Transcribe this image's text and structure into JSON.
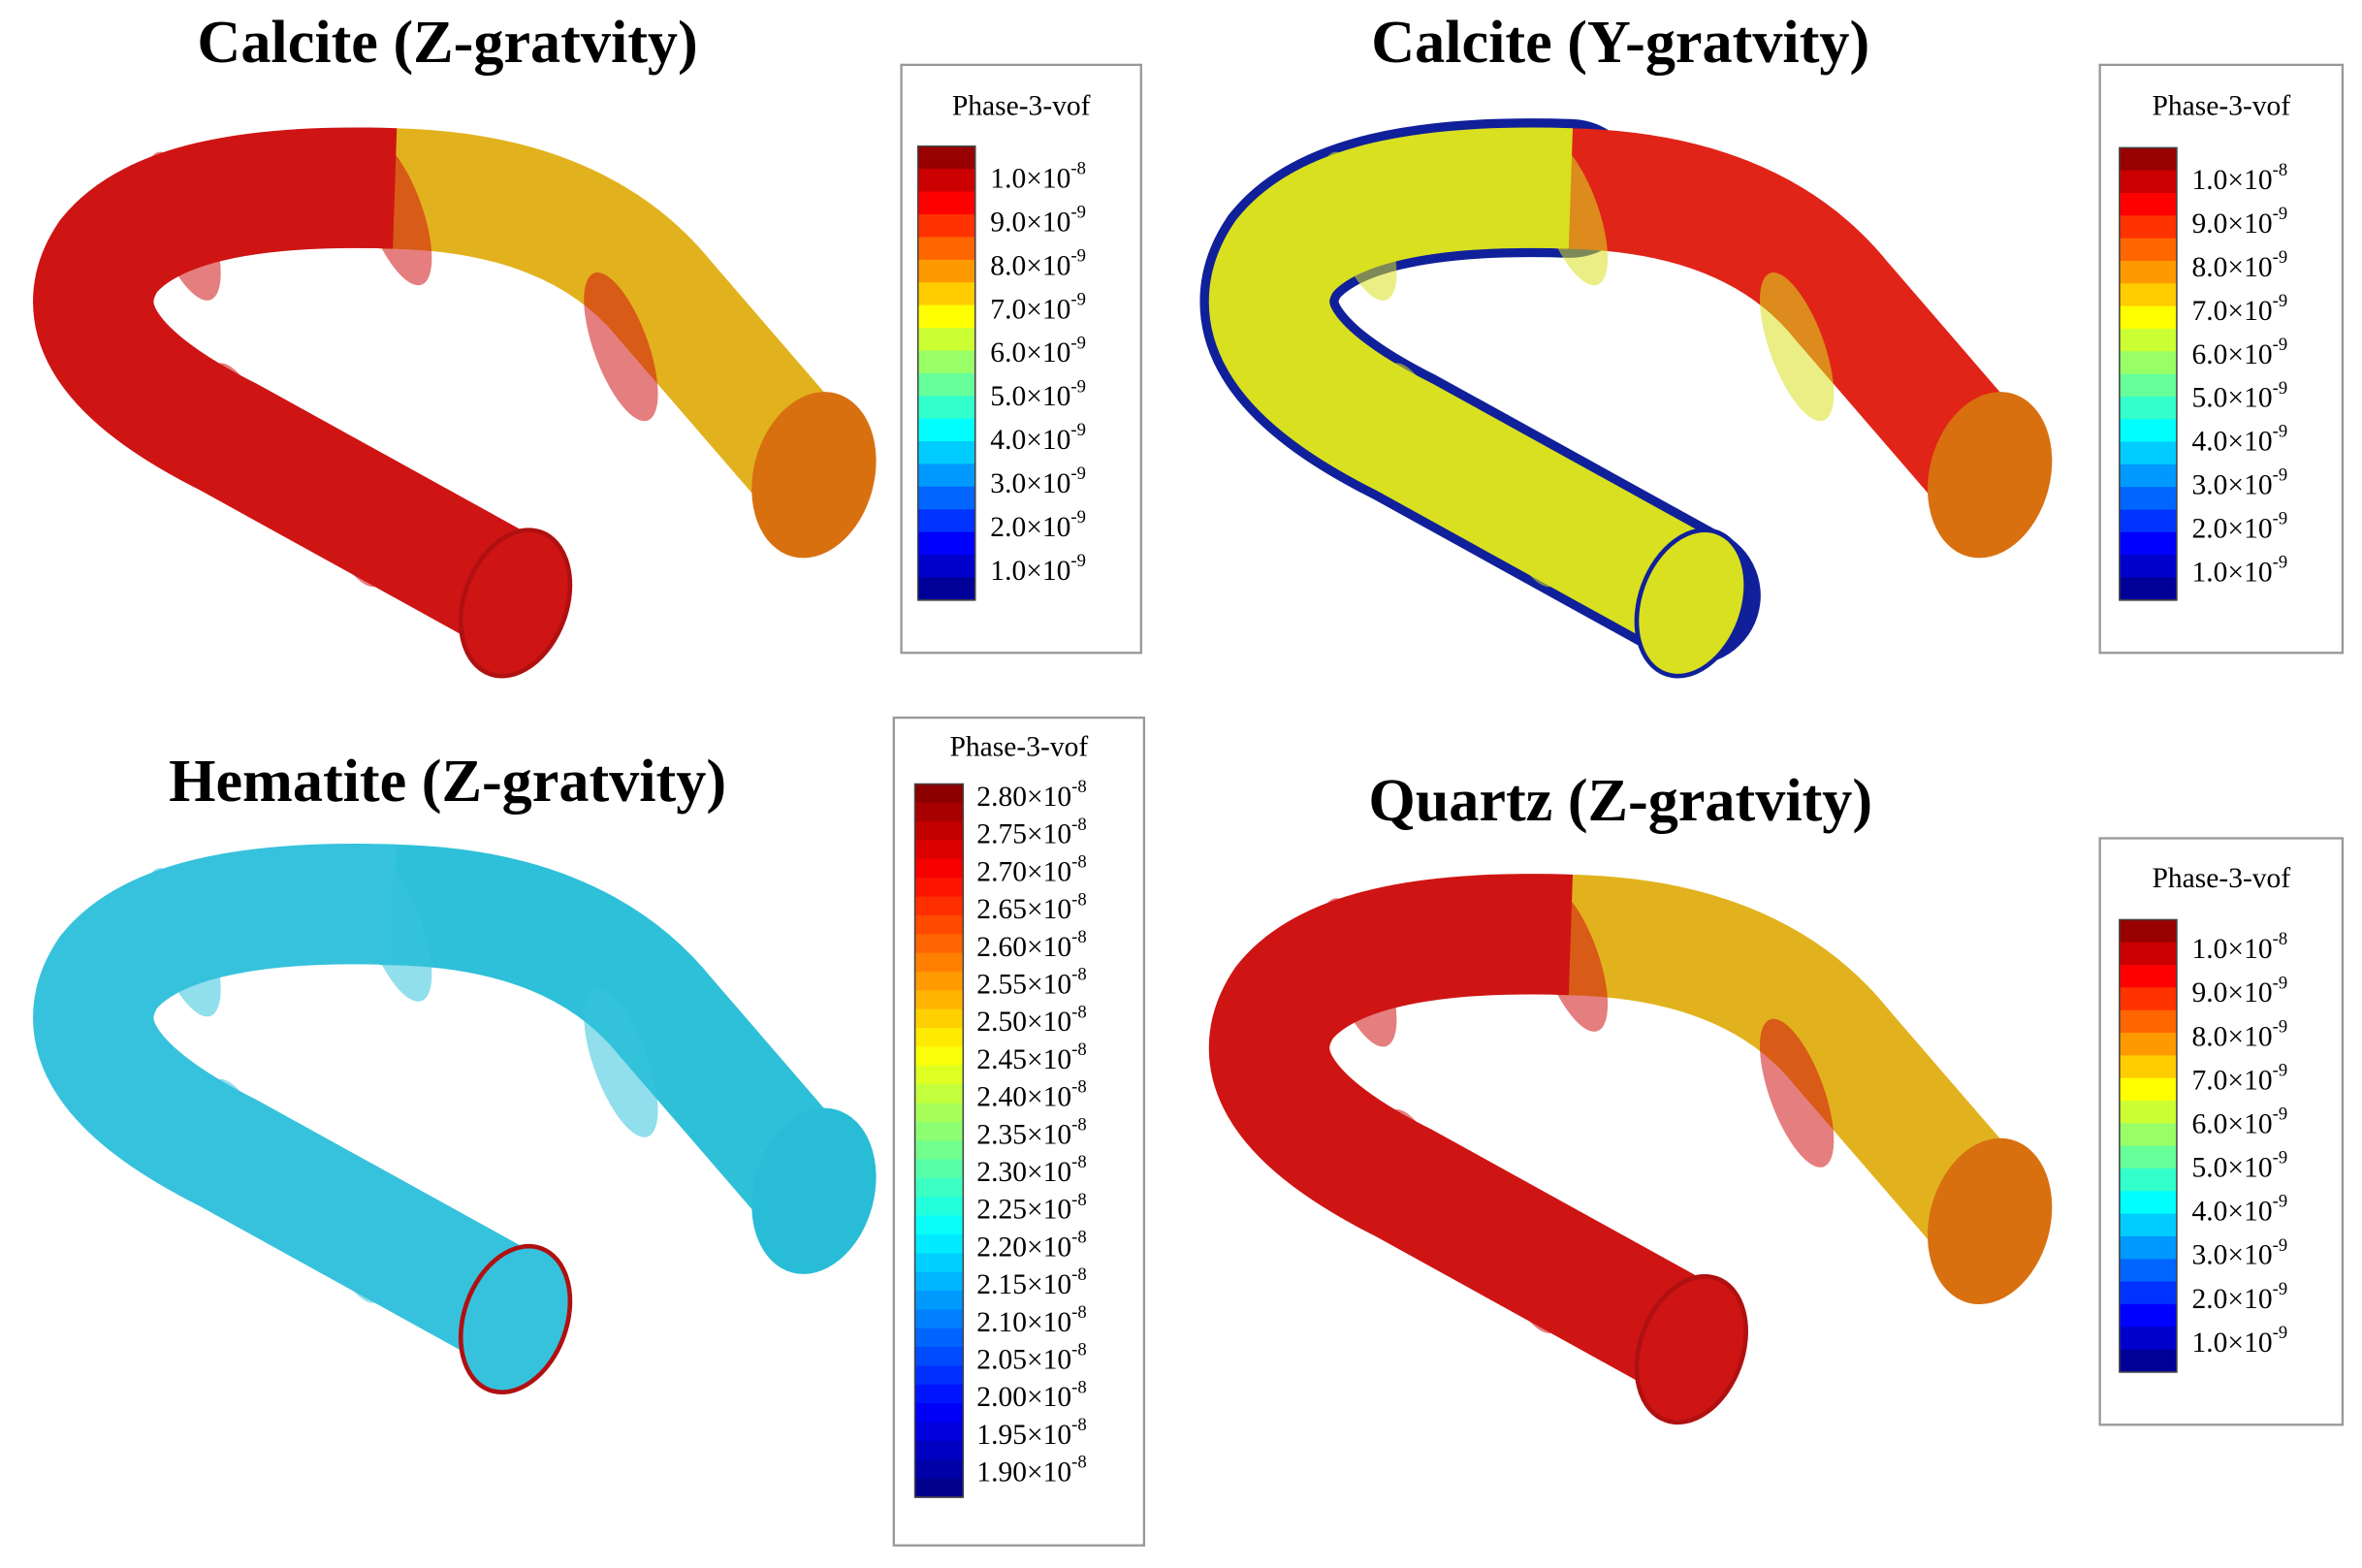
{
  "panels": [
    {
      "title": "Calcite (Z-gratvity)",
      "legend": {
        "title": "Phase-3-vof",
        "labels": [
          {
            "mantissa": "1.0×10",
            "exponent": "-8"
          },
          {
            "mantissa": "9.0×10",
            "exponent": "-9"
          },
          {
            "mantissa": "8.0×10",
            "exponent": "-9"
          },
          {
            "mantissa": "7.0×10",
            "exponent": "-9"
          },
          {
            "mantissa": "6.0×10",
            "exponent": "-9"
          },
          {
            "mantissa": "5.0×10",
            "exponent": "-9"
          },
          {
            "mantissa": "4.0×10",
            "exponent": "-9"
          },
          {
            "mantissa": "3.0×10",
            "exponent": "-9"
          },
          {
            "mantissa": "2.0×10",
            "exponent": "-9"
          },
          {
            "mantissa": "1.0×10",
            "exponent": "-9"
          }
        ]
      }
    },
    {
      "title": "Calcite (Y-gratvity)",
      "legend": {
        "title": "Phase-3-vof",
        "labels": [
          {
            "mantissa": "1.0×10",
            "exponent": "-8"
          },
          {
            "mantissa": "9.0×10",
            "exponent": "-9"
          },
          {
            "mantissa": "8.0×10",
            "exponent": "-9"
          },
          {
            "mantissa": "7.0×10",
            "exponent": "-9"
          },
          {
            "mantissa": "6.0×10",
            "exponent": "-9"
          },
          {
            "mantissa": "5.0×10",
            "exponent": "-9"
          },
          {
            "mantissa": "4.0×10",
            "exponent": "-9"
          },
          {
            "mantissa": "3.0×10",
            "exponent": "-9"
          },
          {
            "mantissa": "2.0×10",
            "exponent": "-9"
          },
          {
            "mantissa": "1.0×10",
            "exponent": "-9"
          }
        ]
      }
    },
    {
      "title": "Hematite (Z-gratvity)",
      "legend": {
        "title": "Phase-3-vof",
        "labels": [
          {
            "mantissa": "2.80×10",
            "exponent": "-8"
          },
          {
            "mantissa": "2.75×10",
            "exponent": "-8"
          },
          {
            "mantissa": "2.70×10",
            "exponent": "-8"
          },
          {
            "mantissa": "2.65×10",
            "exponent": "-8"
          },
          {
            "mantissa": "2.60×10",
            "exponent": "-8"
          },
          {
            "mantissa": "2.55×10",
            "exponent": "-8"
          },
          {
            "mantissa": "2.50×10",
            "exponent": "-8"
          },
          {
            "mantissa": "2.45×10",
            "exponent": "-8"
          },
          {
            "mantissa": "2.40×10",
            "exponent": "-8"
          },
          {
            "mantissa": "2.35×10",
            "exponent": "-8"
          },
          {
            "mantissa": "2.30×10",
            "exponent": "-8"
          },
          {
            "mantissa": "2.25×10",
            "exponent": "-8"
          },
          {
            "mantissa": "2.20×10",
            "exponent": "-8"
          },
          {
            "mantissa": "2.15×10",
            "exponent": "-8"
          },
          {
            "mantissa": "2.10×10",
            "exponent": "-8"
          },
          {
            "mantissa": "2.05×10",
            "exponent": "-8"
          },
          {
            "mantissa": "2.00×10",
            "exponent": "-8"
          },
          {
            "mantissa": "1.95×10",
            "exponent": "-8"
          },
          {
            "mantissa": "1.90×10",
            "exponent": "-8"
          }
        ]
      }
    },
    {
      "title": "Quartz (Z-gratvity)",
      "legend": {
        "title": "Phase-3-vof",
        "labels": [
          {
            "mantissa": "1.0×10",
            "exponent": "-8"
          },
          {
            "mantissa": "9.0×10",
            "exponent": "-9"
          },
          {
            "mantissa": "8.0×10",
            "exponent": "-9"
          },
          {
            "mantissa": "7.0×10",
            "exponent": "-9"
          },
          {
            "mantissa": "6.0×10",
            "exponent": "-9"
          },
          {
            "mantissa": "5.0×10",
            "exponent": "-9"
          },
          {
            "mantissa": "4.0×10",
            "exponent": "-9"
          },
          {
            "mantissa": "3.0×10",
            "exponent": "-9"
          },
          {
            "mantissa": "2.0×10",
            "exponent": "-9"
          },
          {
            "mantissa": "1.0×10",
            "exponent": "-9"
          }
        ]
      }
    }
  ]
}
